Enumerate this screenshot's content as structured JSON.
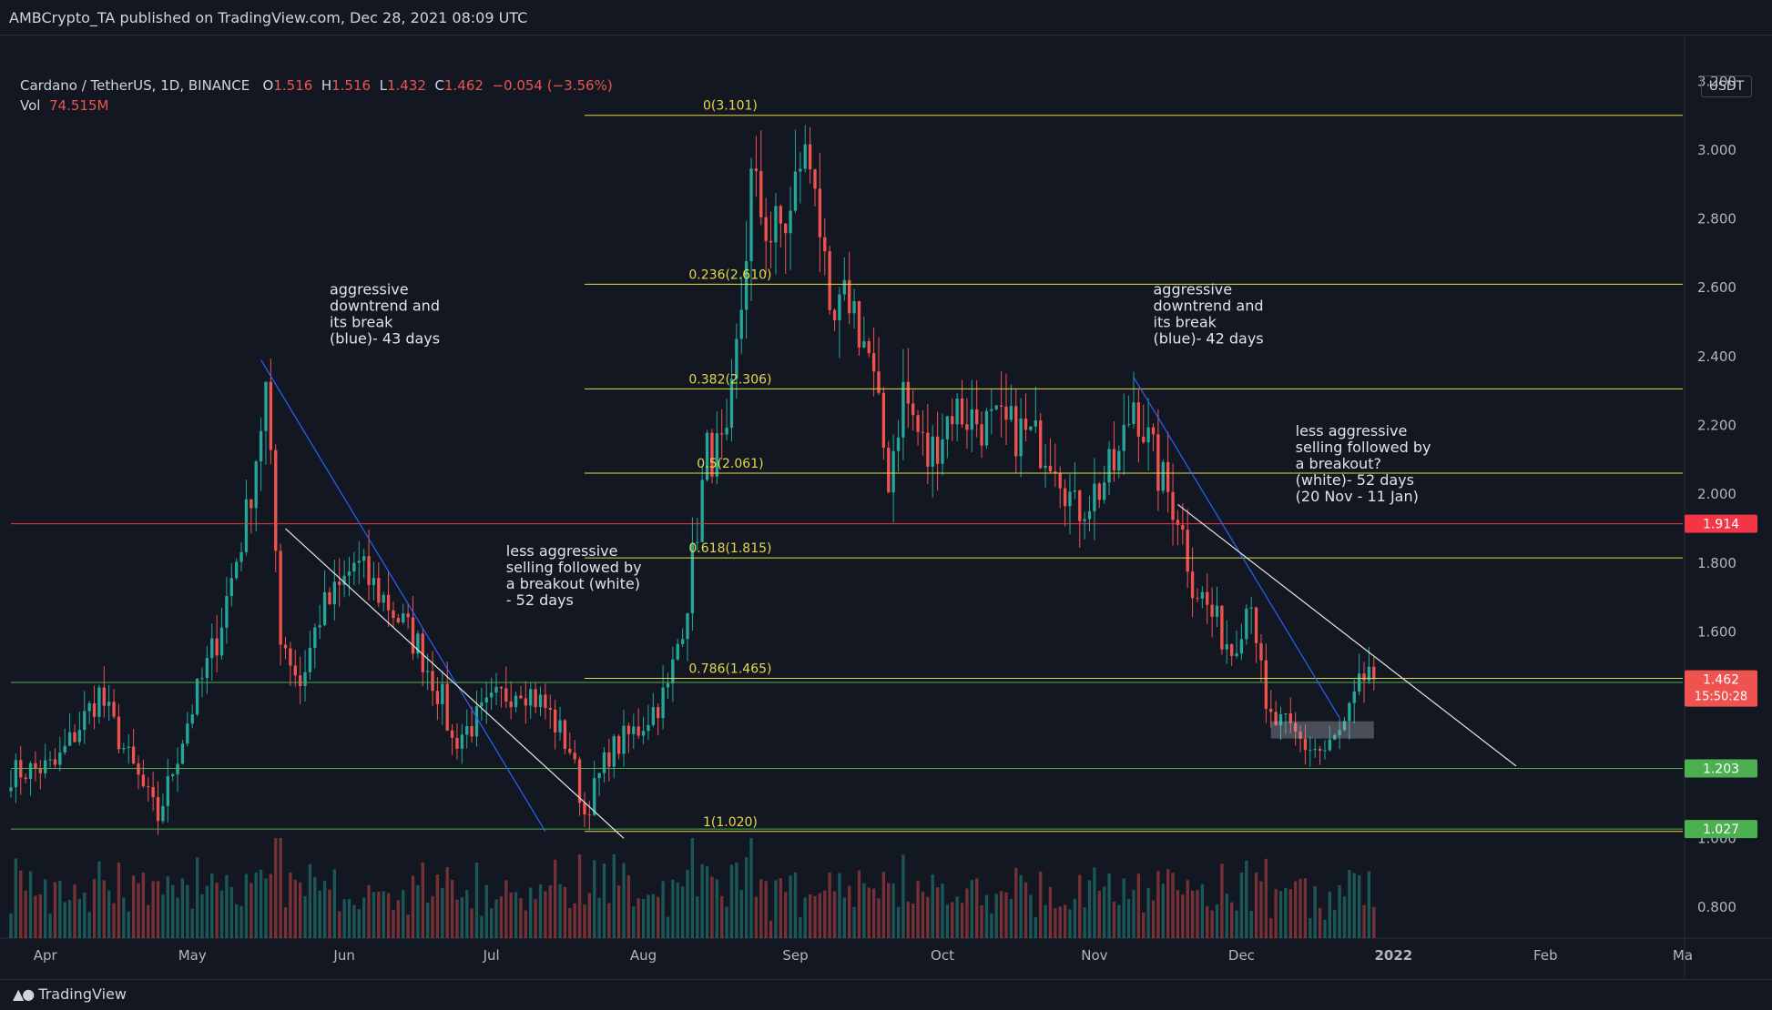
{
  "header": {
    "publish_line": "AMBCrypto_TA published on TradingView.com, Dec 28, 2021 08:09 UTC"
  },
  "legend": {
    "symbol": "Cardano / TetherUS, 1D, BINANCE",
    "open_label": "O",
    "open": "1.516",
    "high_label": "H",
    "high": "1.516",
    "low_label": "L",
    "low": "1.432",
    "close_label": "C",
    "close": "1.462",
    "change": "−0.054 (−3.56%)",
    "vol_label": "Vol",
    "vol": "74.515M"
  },
  "currency": "USDT",
  "footer": {
    "brand": "TradingView",
    "logo_icon": "tradingview-logo-icon"
  },
  "colors": {
    "bg": "#131722",
    "up": "#26a69a",
    "down": "#ef5350",
    "fib": "#e6d84a",
    "support": "#4caf50",
    "resistance": "#f23645",
    "blue_trend": "#2962ff",
    "white_trend": "#e8e8e8"
  },
  "chart_data": {
    "type": "candlestick",
    "pair": "ADA/USDT",
    "x_axis": {
      "tick_labels": [
        "Apr",
        "May",
        "Jun",
        "Jul",
        "Aug",
        "Sep",
        "Oct",
        "Nov",
        "Dec",
        "2022",
        "Feb",
        "Ma"
      ],
      "tick_dates": [
        "2021-04-01",
        "2021-05-01",
        "2021-06-01",
        "2021-07-01",
        "2021-08-01",
        "2021-09-01",
        "2021-10-01",
        "2021-11-01",
        "2021-12-01",
        "2022-01-01",
        "2022-02-01",
        "2022-03-01"
      ],
      "range": [
        "2021-03-25",
        "2022-03-01"
      ]
    },
    "y_axis": {
      "tick_labels": [
        "3.200",
        "3.000",
        "2.800",
        "2.600",
        "2.400",
        "2.200",
        "2.000",
        "1.800",
        "1.600",
        "1.000",
        "0.800"
      ],
      "tick_values": [
        3.2,
        3.0,
        2.8,
        2.6,
        2.4,
        2.2,
        2.0,
        1.8,
        1.6,
        1.0,
        0.8
      ],
      "range": [
        0.71,
        3.28
      ]
    },
    "price_path": [
      [
        "2021-03-25",
        1.19
      ],
      [
        "2021-04-03",
        1.21
      ],
      [
        "2021-04-12",
        1.42
      ],
      [
        "2021-04-18",
        1.23
      ],
      [
        "2021-04-24",
        1.06
      ],
      [
        "2021-04-30",
        1.34
      ],
      [
        "2021-05-06",
        1.58
      ],
      [
        "2021-05-12",
        1.93
      ],
      [
        "2021-05-16",
        2.3
      ],
      [
        "2021-05-19",
        1.6
      ],
      [
        "2021-05-23",
        1.45
      ],
      [
        "2021-05-27",
        1.65
      ],
      [
        "2021-05-31",
        1.72
      ],
      [
        "2021-06-03",
        1.8
      ],
      [
        "2021-06-10",
        1.68
      ],
      [
        "2021-06-16",
        1.56
      ],
      [
        "2021-06-21",
        1.4
      ],
      [
        "2021-06-23",
        1.28
      ],
      [
        "2021-06-27",
        1.33
      ],
      [
        "2021-07-02",
        1.4
      ],
      [
        "2021-07-07",
        1.45
      ],
      [
        "2021-07-12",
        1.38
      ],
      [
        "2021-07-17",
        1.26
      ],
      [
        "2021-07-20",
        1.07
      ],
      [
        "2021-07-25",
        1.25
      ],
      [
        "2021-07-31",
        1.32
      ],
      [
        "2021-08-06",
        1.43
      ],
      [
        "2021-08-10",
        1.7
      ],
      [
        "2021-08-14",
        2.12
      ],
      [
        "2021-08-18",
        2.12
      ],
      [
        "2021-08-21",
        2.55
      ],
      [
        "2021-08-23",
        2.9
      ],
      [
        "2021-08-27",
        2.75
      ],
      [
        "2021-08-31",
        2.8
      ],
      [
        "2021-09-02",
        2.98
      ],
      [
        "2021-09-05",
        2.95
      ],
      [
        "2021-09-08",
        2.45
      ],
      [
        "2021-09-12",
        2.58
      ],
      [
        "2021-09-16",
        2.4
      ],
      [
        "2021-09-20",
        2.05
      ],
      [
        "2021-09-23",
        2.3
      ],
      [
        "2021-09-28",
        2.1
      ],
      [
        "2021-10-03",
        2.25
      ],
      [
        "2021-10-10",
        2.2
      ],
      [
        "2021-10-17",
        2.18
      ],
      [
        "2021-10-24",
        2.12
      ],
      [
        "2021-10-28",
        1.95
      ],
      [
        "2021-11-02",
        2.02
      ],
      [
        "2021-11-06",
        2.1
      ],
      [
        "2021-11-09",
        2.28
      ],
      [
        "2021-11-14",
        2.06
      ],
      [
        "2021-11-18",
        1.95
      ],
      [
        "2021-11-21",
        1.75
      ],
      [
        "2021-11-26",
        1.62
      ],
      [
        "2021-11-29",
        1.55
      ],
      [
        "2021-12-03",
        1.72
      ],
      [
        "2021-12-06",
        1.35
      ],
      [
        "2021-12-10",
        1.32
      ],
      [
        "2021-12-14",
        1.27
      ],
      [
        "2021-12-18",
        1.25
      ],
      [
        "2021-12-22",
        1.32
      ],
      [
        "2021-12-25",
        1.43
      ],
      [
        "2021-12-27",
        1.5
      ],
      [
        "2021-12-28",
        1.462
      ]
    ],
    "fib_levels": [
      {
        "label": "0(3.101)",
        "value": 3.101
      },
      {
        "label": "0.236(2.610)",
        "value": 2.61
      },
      {
        "label": "0.382(2.306)",
        "value": 2.306
      },
      {
        "label": "0.5(2.061)",
        "value": 2.061
      },
      {
        "label": "0.618(1.815)",
        "value": 1.815
      },
      {
        "label": "0.786(1.465)",
        "value": 1.465
      },
      {
        "label": "1(1.020)",
        "value": 1.02
      }
    ],
    "fib_start_date": "2021-07-20",
    "horizontal_levels": [
      {
        "label": "1.914",
        "value": 1.914,
        "kind": "resistance"
      },
      {
        "label": "1.453",
        "value": 1.453,
        "kind": "support"
      },
      {
        "label": "1.203",
        "value": 1.203,
        "kind": "support"
      },
      {
        "label": "1.027",
        "value": 1.027,
        "kind": "support"
      }
    ],
    "current_price": {
      "label": "1.462",
      "value": 1.462,
      "countdown": "15:50:28"
    },
    "trendlines": [
      {
        "color": "blue",
        "from": [
          "2021-05-15",
          2.39
        ],
        "to": [
          "2021-07-12",
          1.02
        ]
      },
      {
        "color": "white",
        "from": [
          "2021-05-20",
          1.9
        ],
        "to": [
          "2021-07-28",
          1.0
        ]
      },
      {
        "color": "blue",
        "from": [
          "2021-11-09",
          2.34
        ],
        "to": [
          "2021-12-21",
          1.35
        ]
      },
      {
        "color": "white",
        "from": [
          "2021-11-18",
          1.97
        ],
        "to": [
          "2022-01-26",
          1.21
        ]
      }
    ],
    "consolidation_box": {
      "from": [
        "2021-12-07",
        1.34
      ],
      "to": [
        "2021-12-28",
        1.29
      ]
    },
    "annotations": [
      {
        "lines": [
          "aggressive",
          "downtrend and",
          "its break",
          "(blue)- 43 days"
        ],
        "at": [
          "2021-05-29",
          2.58
        ]
      },
      {
        "lines": [
          "less aggressive",
          "selling followed by",
          "a breakout (white)",
          "- 52 days"
        ],
        "at": [
          "2021-07-04",
          1.82
        ]
      },
      {
        "lines": [
          "aggressive",
          "downtrend and",
          "its break",
          "(blue)- 42 days"
        ],
        "at": [
          "2021-11-13",
          2.58
        ]
      },
      {
        "lines": [
          "less aggressive",
          "selling followed by",
          "a breakout?",
          "(white)- 52 days",
          "(20 Nov - 11 Jan)"
        ],
        "at": [
          "2021-12-12",
          2.17
        ]
      }
    ],
    "volume": {
      "note": "volume bars along bottom pane"
    }
  }
}
